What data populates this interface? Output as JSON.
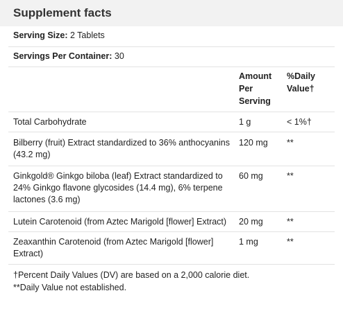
{
  "title": "Supplement facts",
  "serving_size": {
    "label": "Serving Size:",
    "value": "2 Tablets"
  },
  "servings_per_container": {
    "label": "Servings Per Container:",
    "value": "30"
  },
  "columns": {
    "amount": [
      "Amount",
      "Per",
      "Serving"
    ],
    "daily_value": [
      "%Daily",
      "Value†"
    ]
  },
  "rows": [
    {
      "name": "Total Carbohydrate",
      "amount": "1 g",
      "dv": "< 1%†"
    },
    {
      "name": "Bilberry (fruit) Extract standardized to 36% anthocyanins (43.2 mg)",
      "amount": "120 mg",
      "dv": "**"
    },
    {
      "name": "Ginkgold® Ginkgo biloba (leaf) Extract standardized to 24% Ginkgo flavone glycosides (14.4 mg), 6% terpene lactones (3.6 mg)",
      "amount": "60 mg",
      "dv": "**"
    },
    {
      "name": "Lutein Carotenoid (from Aztec Marigold [flower] Extract)",
      "amount": "20 mg",
      "dv": "**"
    },
    {
      "name": "Zeaxanthin Carotenoid (from Aztec Marigold [flower] Extract)",
      "amount": "1 mg",
      "dv": "**"
    }
  ],
  "footnotes": [
    "†Percent Daily Values (DV) are based on a 2,000 calorie diet.",
    "**Daily Value not established."
  ]
}
